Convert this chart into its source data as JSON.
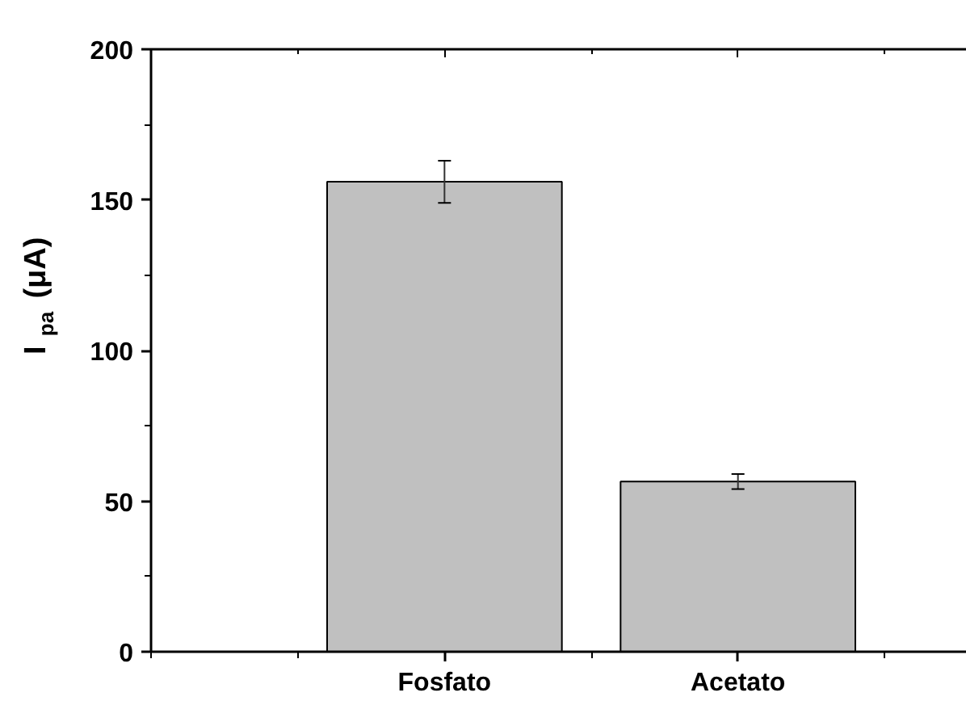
{
  "chart_data": {
    "type": "bar",
    "ylabel": "I$_{pa}$ (μA)",
    "categories": [
      "Fosfato",
      "Acetato"
    ],
    "values": [
      156,
      56.5
    ],
    "errors": [
      7,
      2.5
    ],
    "color": "#c0c0c0",
    "ylim": [
      0,
      200
    ],
    "yticks": [
      0,
      50,
      100,
      150,
      200
    ],
    "grid": false
  }
}
